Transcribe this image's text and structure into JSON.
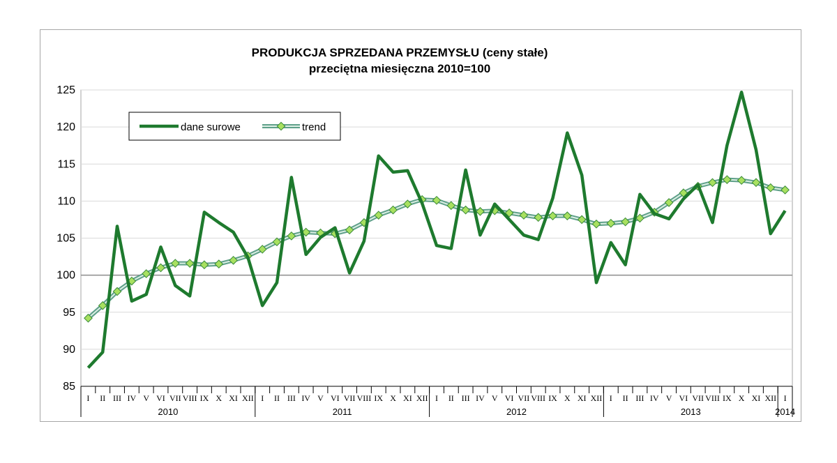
{
  "chart_data": {
    "type": "line",
    "title": "PRODUKCJA SPRZEDANA PRZEMYSŁU (ceny stałe)",
    "subtitle": "przeciętna miesięczna 2010=100",
    "ylim": [
      85,
      125
    ],
    "yticks": [
      85,
      90,
      95,
      100,
      105,
      110,
      115,
      120,
      125
    ],
    "reference_line": 100,
    "grid": true,
    "legend_position": "top-left",
    "month_labels": [
      "I",
      "II",
      "III",
      "IV",
      "V",
      "VI",
      "VII",
      "VIII",
      "IX",
      "X",
      "XI",
      "XII"
    ],
    "years": [
      {
        "label": "2010",
        "months": 12
      },
      {
        "label": "2011",
        "months": 12
      },
      {
        "label": "2012",
        "months": 12
      },
      {
        "label": "2013",
        "months": 12
      },
      {
        "label": "2014",
        "months": 1
      }
    ],
    "series": [
      {
        "name": "dane surowe",
        "color": "#1e7a2e",
        "values": [
          87.5,
          89.6,
          106.6,
          96.5,
          97.4,
          103.8,
          98.6,
          97.2,
          108.5,
          107.1,
          105.8,
          102.4,
          95.9,
          99.0,
          113.2,
          102.8,
          105.1,
          106.4,
          100.3,
          104.6,
          116.1,
          113.9,
          114.1,
          109.7,
          104.0,
          103.6,
          114.2,
          105.4,
          109.6,
          107.5,
          105.4,
          104.8,
          110.4,
          119.2,
          113.5,
          99.0,
          104.4,
          101.4,
          110.9,
          108.3,
          107.6,
          110.3,
          112.2,
          107.1,
          117.5,
          124.7,
          116.9,
          105.6,
          108.7
        ]
      },
      {
        "name": "trend",
        "color": "#5fa08a",
        "marker_color": "#a8e060",
        "values": [
          94.2,
          95.9,
          97.8,
          99.2,
          100.2,
          101.0,
          101.6,
          101.6,
          101.4,
          101.5,
          102.0,
          102.6,
          103.5,
          104.5,
          105.3,
          105.8,
          105.7,
          105.6,
          106.1,
          107.1,
          108.1,
          108.8,
          109.6,
          110.2,
          110.1,
          109.4,
          108.8,
          108.6,
          108.7,
          108.4,
          108.1,
          107.8,
          108.0,
          108.0,
          107.5,
          106.9,
          107.0,
          107.2,
          107.7,
          108.5,
          109.8,
          111.1,
          112.0,
          112.5,
          112.9,
          112.8,
          112.5,
          111.8,
          111.5
        ]
      }
    ]
  }
}
